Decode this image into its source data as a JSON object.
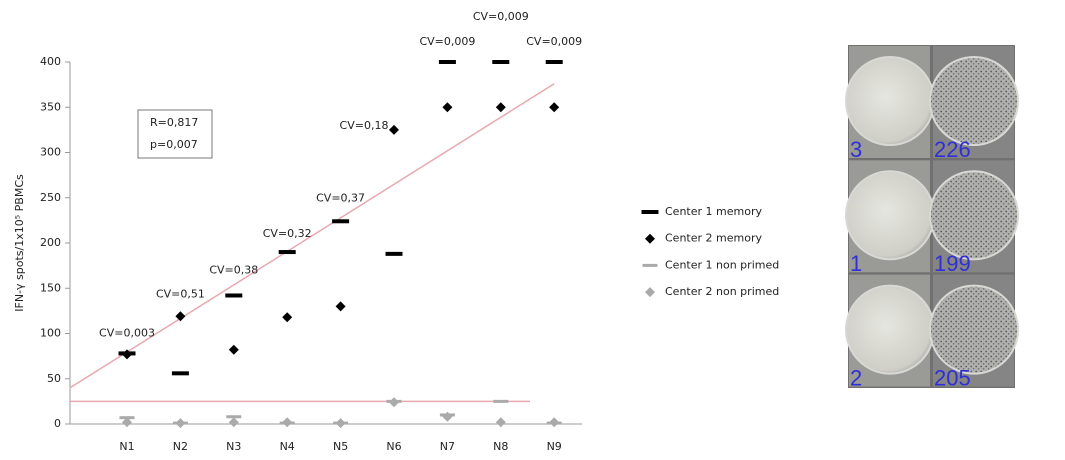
{
  "chart_data": {
    "type": "scatter",
    "y_label": "IFN-γ spots/1x10⁵ PBMCs",
    "categories": [
      "N1",
      "N2",
      "N3",
      "N4",
      "N5",
      "N6",
      "N7",
      "N8",
      "N9"
    ],
    "ylim": [
      0,
      400
    ],
    "yticks": [
      0,
      50,
      100,
      150,
      200,
      250,
      300,
      350,
      400
    ],
    "grid": false,
    "series": [
      {
        "name": "Center 1 memory",
        "color": "#000000",
        "marker": "dash",
        "values": [
          78,
          56,
          142,
          190,
          224,
          188,
          400,
          400,
          400
        ]
      },
      {
        "name": "Center 2 memory",
        "color": "#000000",
        "marker": "diamond",
        "values": [
          77,
          119,
          82,
          118,
          130,
          325,
          350,
          350,
          350
        ]
      },
      {
        "name": "Center 1 non primed",
        "color": "#aaaaaa",
        "marker": "dash",
        "values": [
          7,
          1,
          8,
          1,
          1,
          25,
          10,
          25,
          1
        ]
      },
      {
        "name": "Center 2 non primed",
        "color": "#aaaaaa",
        "marker": "diamond",
        "values": [
          2,
          1,
          2,
          2,
          1,
          24,
          8,
          2,
          2
        ]
      }
    ],
    "cv_labels": [
      "CV=0,003",
      "CV=0,51",
      "CV=0,38",
      "CV=0,32",
      "CV=0,37",
      "CV=0,18",
      "CV=0,009",
      "CV=0,009",
      "CV=0,009"
    ],
    "trend_lines": [
      {
        "color": "#e8a8b0",
        "values": [
          40,
          376
        ]
      },
      {
        "color": "#e8a8b0",
        "values": [
          25,
          25
        ]
      }
    ],
    "stats_box": [
      "R=0,817",
      "p=0,007"
    ]
  },
  "plate": {
    "wells": [
      [
        "3",
        "226"
      ],
      [
        "1",
        "199"
      ],
      [
        "2",
        "205"
      ]
    ]
  }
}
